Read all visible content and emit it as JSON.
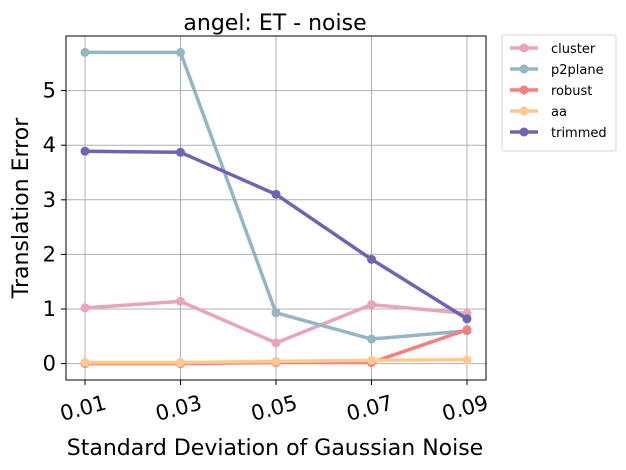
{
  "chart_data": {
    "type": "line",
    "title": "angel: ET - noise",
    "xlabel": "Standard Deviation of Gaussian Noise",
    "ylabel": "Translation Error",
    "x": [
      0.01,
      0.03,
      0.05,
      0.07,
      0.09
    ],
    "x_tick_labels": [
      "0.01",
      "0.03",
      "0.05",
      "0.07",
      "0.09"
    ],
    "y_ticks": [
      0,
      1,
      2,
      3,
      4,
      5
    ],
    "ylim": [
      -0.3,
      6.0
    ],
    "grid": true,
    "legend_position": "outside-top-right",
    "series": [
      {
        "name": "cluster",
        "color": "#e8a4b8",
        "values": [
          1.02,
          1.14,
          0.38,
          1.08,
          0.92
        ]
      },
      {
        "name": "p2plane",
        "color": "#93b5c6",
        "values": [
          5.7,
          5.7,
          0.93,
          0.45,
          0.6
        ]
      },
      {
        "name": "robust",
        "color": "#f47f7c",
        "values": [
          0.0,
          0.0,
          0.02,
          0.02,
          0.62
        ]
      },
      {
        "name": "aa",
        "color": "#fcc98f",
        "values": [
          0.02,
          0.02,
          0.04,
          0.06,
          0.07
        ]
      },
      {
        "name": "trimmed",
        "color": "#6d64b5",
        "values": [
          3.89,
          3.87,
          3.1,
          1.91,
          0.82
        ]
      }
    ]
  }
}
